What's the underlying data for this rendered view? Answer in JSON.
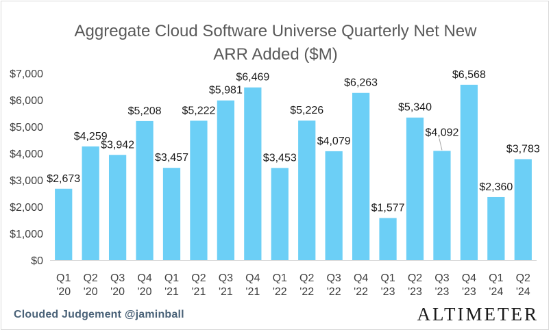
{
  "chart_data": {
    "type": "bar",
    "title_lines": [
      "Aggregate Cloud Software Universe Quarterly Net New",
      "ARR Added ($M)"
    ],
    "categories": [
      [
        "Q1",
        "'20"
      ],
      [
        "Q2",
        "'20"
      ],
      [
        "Q3",
        "'20"
      ],
      [
        "Q4",
        "'20"
      ],
      [
        "Q1",
        "'21"
      ],
      [
        "Q2",
        "'21"
      ],
      [
        "Q3",
        "'21"
      ],
      [
        "Q4",
        "'21"
      ],
      [
        "Q1",
        "'22"
      ],
      [
        "Q2",
        "'22"
      ],
      [
        "Q3",
        "'22"
      ],
      [
        "Q4",
        "'22"
      ],
      [
        "Q1",
        "'23"
      ],
      [
        "Q2",
        "'23"
      ],
      [
        "Q3",
        "'23"
      ],
      [
        "Q4",
        "'23"
      ],
      [
        "Q1",
        "'24"
      ],
      [
        "Q2",
        "'24"
      ]
    ],
    "values": [
      2673,
      4259,
      3942,
      5208,
      3457,
      5222,
      5981,
      6469,
      3453,
      5226,
      4079,
      6263,
      1577,
      5340,
      4092,
      6568,
      2360,
      3783
    ],
    "data_labels": [
      "$2,673",
      "$4,259",
      "$3,942",
      "$5,208",
      "$3,457",
      "$5,222",
      "$5,981",
      "$6,469",
      "$3,453",
      "$5,226",
      "$4,079",
      "$6,263",
      "$1,577",
      "$5,340",
      "$4,092",
      "$6,568",
      "$2,360",
      "$3,783"
    ],
    "ylim": [
      0,
      7000
    ],
    "yticks": [
      0,
      1000,
      2000,
      3000,
      4000,
      5000,
      6000,
      7000
    ],
    "ytick_labels": [
      "$0",
      "$1,000",
      "$2,000",
      "$3,000",
      "$4,000",
      "$5,000",
      "$6,000",
      "$7,000"
    ],
    "xlabel": "",
    "ylabel": "",
    "grid": false,
    "bar_color": "#6ccff6"
  },
  "footer": {
    "source": "Clouded Judgement @jaminball",
    "brand": "ALTIMETER"
  }
}
